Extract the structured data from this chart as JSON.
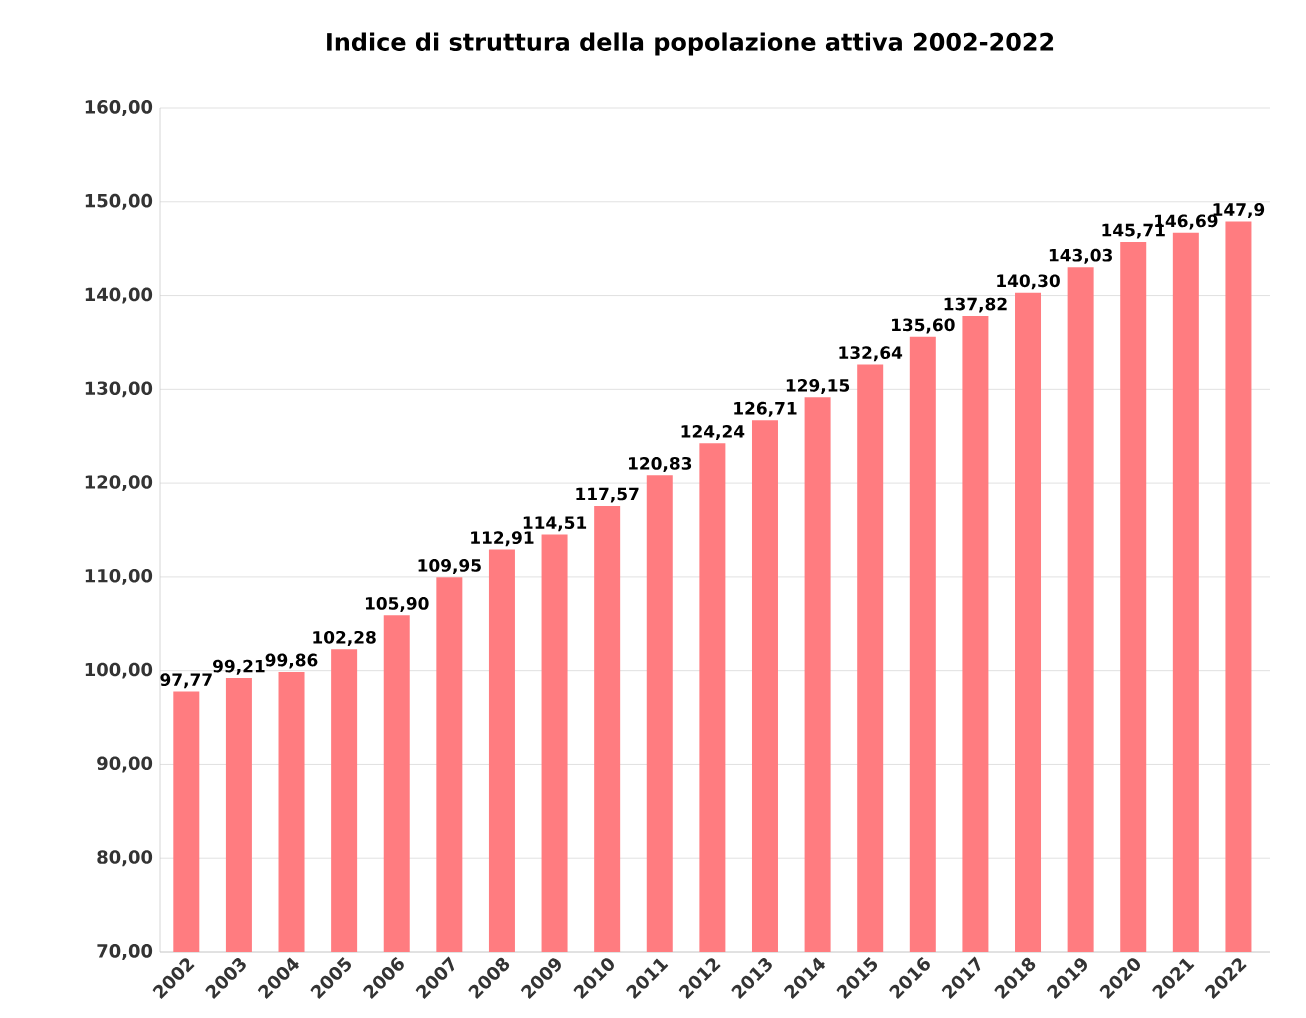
{
  "chart_data": {
    "type": "bar",
    "title": "Indice di struttura della popolazione attiva 2002-2022",
    "categories": [
      "2002",
      "2003",
      "2004",
      "2005",
      "2006",
      "2007",
      "2008",
      "2009",
      "2010",
      "2011",
      "2012",
      "2013",
      "2014",
      "2015",
      "2016",
      "2017",
      "2018",
      "2019",
      "2020",
      "2021",
      "2022"
    ],
    "values": [
      97.77,
      99.21,
      99.86,
      102.28,
      105.9,
      109.95,
      112.91,
      114.51,
      117.57,
      120.83,
      124.24,
      126.71,
      129.15,
      132.64,
      135.6,
      137.82,
      140.3,
      143.03,
      145.71,
      146.69,
      147.9
    ],
    "value_labels": [
      "97,77",
      "99,21",
      "99,86",
      "102,28",
      "105,90",
      "109,95",
      "112,91",
      "114,51",
      "117,57",
      "120,83",
      "124,24",
      "126,71",
      "129,15",
      "132,64",
      "135,60",
      "137,82",
      "140,30",
      "143,03",
      "145,71",
      "146,69",
      "147,9"
    ],
    "color": "#ff7c80",
    "ylim": [
      70,
      160
    ],
    "yticks": [
      {
        "value": 70,
        "label": "70,00"
      },
      {
        "value": 80,
        "label": "80,00"
      },
      {
        "value": 90,
        "label": "90,00"
      },
      {
        "value": 100,
        "label": "100,00"
      },
      {
        "value": 110,
        "label": "110,00"
      },
      {
        "value": 120,
        "label": "120,00"
      },
      {
        "value": 130,
        "label": "130,00"
      },
      {
        "value": 140,
        "label": "140,00"
      },
      {
        "value": 150,
        "label": "150,00"
      },
      {
        "value": 160,
        "label": "160,00"
      }
    ],
    "grid": "y"
  }
}
